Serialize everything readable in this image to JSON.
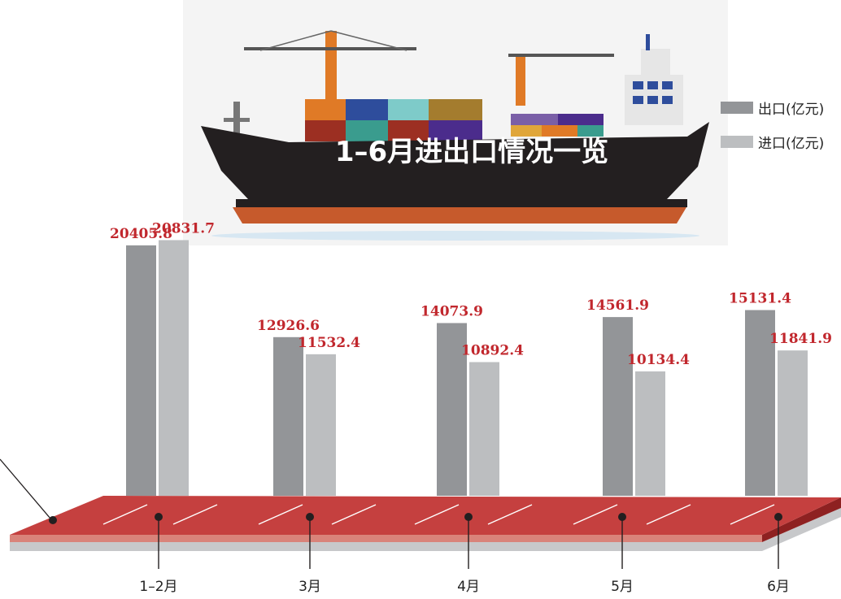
{
  "chart_data": {
    "type": "bar",
    "title": "1–6月进出口情况一览",
    "categories": [
      "1–2月",
      "3月",
      "4月",
      "5月",
      "6月"
    ],
    "series": [
      {
        "name": "出口(亿元)",
        "values": [
          20405.8,
          12926.6,
          14073.9,
          14561.9,
          15131.4
        ]
      },
      {
        "name": "进口(亿元)",
        "values": [
          20831.7,
          11532.4,
          10892.4,
          10134.4,
          11841.9
        ]
      }
    ],
    "value_labels": [
      [
        "20405.8",
        "12926.6",
        "14073.9",
        "14561.9",
        "15131.4"
      ],
      [
        "20831.7",
        "11532.4",
        "10892.4",
        "10134.4",
        "11841.9"
      ]
    ],
    "ylim": [
      0,
      25000
    ],
    "grid": false,
    "legend_position": "top-right"
  },
  "colors": {
    "export": "#939598",
    "import": "#bcbec0",
    "value_label": "#c1272d",
    "platform_top": "#c5403f",
    "platform_front": "#d9837a",
    "platform_side": "#8e2121",
    "platform_shadow": "#c7c8ca",
    "ship_hull": "#231f20",
    "ship_deck": "#c65a2c"
  },
  "icons": {
    "illustration": "container-ship-icon"
  }
}
